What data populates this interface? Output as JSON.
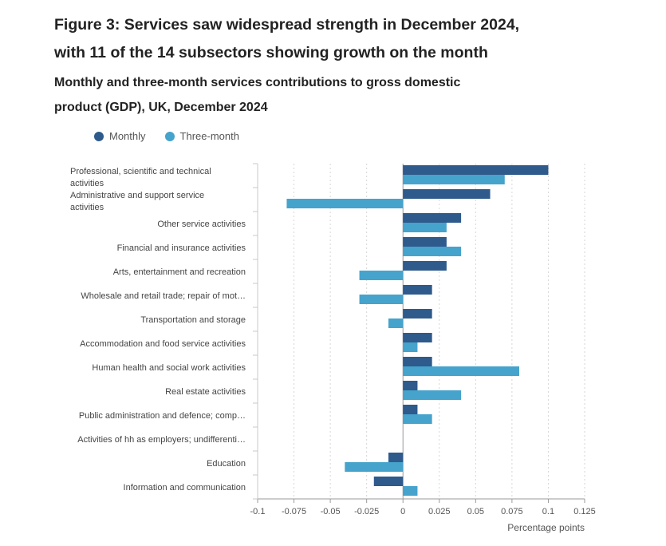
{
  "title_lines": [
    "Figure 3: Services saw widespread strength in December 2024,",
    "with 11 of the 14 subsectors showing growth on the month"
  ],
  "subtitle_lines": [
    "Monthly and three-month services contributions to gross domestic",
    "product (GDP), UK, December 2024"
  ],
  "legend": [
    {
      "label": "Monthly",
      "color": "#2e5a8c"
    },
    {
      "label": "Three-month",
      "color": "#45a3cc"
    }
  ],
  "chart_data": {
    "type": "bar",
    "orientation": "horizontal",
    "title": "Monthly and three-month services contributions to gross domestic product (GDP), UK, December 2024",
    "xlabel": "Percentage points",
    "ylabel": "",
    "xlim": [
      -0.1,
      0.125
    ],
    "xticks": [
      -0.1,
      -0.075,
      -0.05,
      -0.025,
      0,
      0.025,
      0.05,
      0.075,
      0.1,
      0.125
    ],
    "xtick_labels": [
      "-0.1",
      "-0.075",
      "-0.05",
      "-0.025",
      "0",
      "0.025",
      "0.05",
      "0.075",
      "0.1",
      "0.125"
    ],
    "grid": true,
    "legend_position": "top-left",
    "categories": [
      [
        "Professional, scientific and technical",
        "activities"
      ],
      [
        "Administrative and support service",
        "activities"
      ],
      [
        "Other service activities"
      ],
      [
        "Financial and insurance activities"
      ],
      [
        "Arts, entertainment and recreation"
      ],
      [
        "Wholesale and retail trade; repair of mot…"
      ],
      [
        "Transportation and storage"
      ],
      [
        "Accommodation and food service activities"
      ],
      [
        "Human health and social work activities"
      ],
      [
        "Real estate activities"
      ],
      [
        "Public administration and defence; comp…"
      ],
      [
        "Activities of hh as employers; undifferenti…"
      ],
      [
        "Education"
      ],
      [
        "Information and communication"
      ]
    ],
    "series": [
      {
        "name": "Monthly",
        "color": "#2e5a8c",
        "values": [
          0.1,
          0.06,
          0.04,
          0.03,
          0.03,
          0.02,
          0.02,
          0.02,
          0.02,
          0.01,
          0.01,
          0,
          -0.01,
          -0.02
        ]
      },
      {
        "name": "Three-month",
        "color": "#45a3cc",
        "values": [
          0.07,
          -0.08,
          0.03,
          0.04,
          -0.03,
          -0.03,
          -0.01,
          0.01,
          0.08,
          0.04,
          0.02,
          0,
          -0.04,
          0.01
        ]
      }
    ]
  }
}
